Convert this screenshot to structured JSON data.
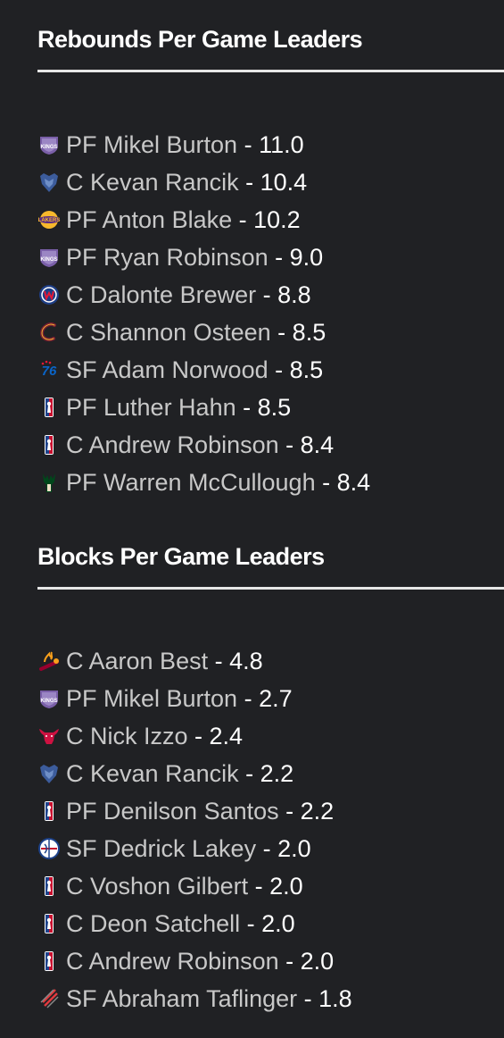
{
  "rebounds": {
    "title": "Rebounds Per Game Leaders",
    "rows": [
      {
        "team_icon": "kings-logo-icon",
        "player": "PF Mikel Burton",
        "sep": " - ",
        "value": "11.0"
      },
      {
        "team_icon": "grizzlies-logo-icon",
        "player": "C Kevan Rancik",
        "sep": " - ",
        "value": "10.4"
      },
      {
        "team_icon": "lakers-logo-icon",
        "player": "PF Anton Blake",
        "sep": " - ",
        "value": "10.2"
      },
      {
        "team_icon": "kings-logo-icon",
        "player": "PF Ryan Robinson",
        "sep": " - ",
        "value": "9.0"
      },
      {
        "team_icon": "wizards-logo-icon",
        "player": "C Dalonte Brewer",
        "sep": " - ",
        "value": "8.8"
      },
      {
        "team_icon": "cavaliers-logo-icon",
        "player": "C Shannon Osteen",
        "sep": " - ",
        "value": "8.5"
      },
      {
        "team_icon": "sixers-logo-icon",
        "player": "SF Adam Norwood",
        "sep": " - ",
        "value": "8.5"
      },
      {
        "team_icon": "nba-logo-icon",
        "player": "PF Luther Hahn",
        "sep": " - ",
        "value": "8.5"
      },
      {
        "team_icon": "nba-logo-icon",
        "player": "C Andrew Robinson",
        "sep": " - ",
        "value": "8.4"
      },
      {
        "team_icon": "bucks-logo-icon",
        "player": "PF Warren McCullough",
        "sep": " - ",
        "value": "8.4"
      }
    ]
  },
  "blocks": {
    "title": "Blocks Per Game Leaders",
    "rows": [
      {
        "team_icon": "heat-logo-icon",
        "player": "C Aaron Best",
        "sep": " - ",
        "value": "4.8"
      },
      {
        "team_icon": "kings-logo-icon",
        "player": "PF Mikel Burton",
        "sep": " - ",
        "value": "2.7"
      },
      {
        "team_icon": "bulls-logo-icon",
        "player": "C Nick Izzo",
        "sep": " - ",
        "value": "2.4"
      },
      {
        "team_icon": "grizzlies-logo-icon",
        "player": "C Kevan Rancik",
        "sep": " - ",
        "value": "2.2"
      },
      {
        "team_icon": "nba-logo-icon",
        "player": "PF Denilson Santos",
        "sep": " - ",
        "value": "2.2"
      },
      {
        "team_icon": "clippers-logo-icon",
        "player": "SF Dedrick Lakey",
        "sep": " - ",
        "value": "2.0"
      },
      {
        "team_icon": "nba-logo-icon",
        "player": "C Voshon Gilbert",
        "sep": " - ",
        "value": "2.0"
      },
      {
        "team_icon": "nba-logo-icon",
        "player": "C Deon Satchell",
        "sep": " - ",
        "value": "2.0"
      },
      {
        "team_icon": "nba-logo-icon",
        "player": "C Andrew Robinson",
        "sep": " - ",
        "value": "2.0"
      },
      {
        "team_icon": "blazers-logo-icon",
        "player": "SF Abraham Taflinger",
        "sep": " - ",
        "value": "1.8"
      }
    ]
  },
  "colors": {
    "background": "#202124",
    "player_link": "#c8c8c8",
    "stat_text": "#ffffff",
    "divider": "#e6e6e6"
  }
}
